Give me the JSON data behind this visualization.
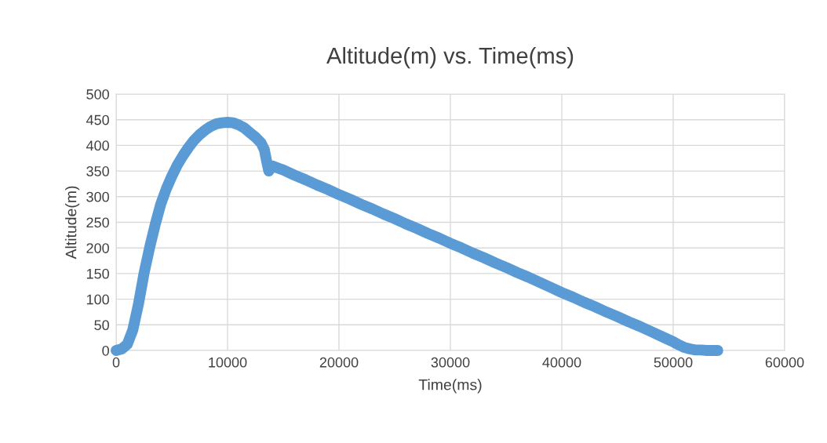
{
  "chart_data": {
    "type": "line",
    "title": "Altitude(m) vs. Time(ms)",
    "xlabel": "Time(ms)",
    "ylabel": "Altitude(m)",
    "xlim": [
      0,
      60000
    ],
    "xticks": [
      0,
      10000,
      20000,
      30000,
      40000,
      50000,
      60000
    ],
    "ylim": [
      0,
      500
    ],
    "yticks": [
      0,
      50,
      100,
      150,
      200,
      250,
      300,
      350,
      400,
      450,
      500
    ],
    "grid": true,
    "line_style": "solid",
    "legend": false,
    "series": [
      {
        "color": "#5b9bd5",
        "x": [
          0,
          500,
          1000,
          1500,
          2000,
          2500,
          3000,
          3500,
          4000,
          4500,
          5000,
          5500,
          6000,
          6500,
          7000,
          7500,
          8000,
          8500,
          9000,
          9500,
          10000,
          10500,
          11000,
          11500,
          12000,
          12500,
          13000,
          13300,
          13500,
          13700,
          14000,
          14500,
          15000,
          16000,
          17000,
          18000,
          19000,
          20000,
          21000,
          22000,
          23000,
          24000,
          25000,
          26000,
          27000,
          28000,
          29000,
          30000,
          31000,
          32000,
          33000,
          34000,
          35000,
          36000,
          37000,
          38000,
          39000,
          40000,
          41000,
          42000,
          43000,
          44000,
          45000,
          46000,
          47000,
          48000,
          49000,
          50000,
          50500,
          51000,
          51500,
          52000,
          52500,
          53000,
          53500,
          54000
        ],
        "values": [
          0,
          3,
          12,
          40,
          90,
          150,
          200,
          245,
          285,
          315,
          340,
          362,
          380,
          396,
          410,
          421,
          430,
          437,
          442,
          444,
          445,
          444,
          440,
          434,
          425,
          416,
          405,
          392,
          370,
          350,
          360,
          356,
          352,
          342,
          333,
          323,
          314,
          304,
          295,
          285,
          276,
          266,
          257,
          247,
          238,
          228,
          219,
          209,
          200,
          190,
          181,
          171,
          162,
          152,
          143,
          133,
          123,
          113,
          104,
          94,
          85,
          75,
          66,
          56,
          47,
          37,
          27,
          17,
          11,
          6,
          3,
          1,
          1,
          0,
          0,
          0
        ]
      }
    ]
  }
}
